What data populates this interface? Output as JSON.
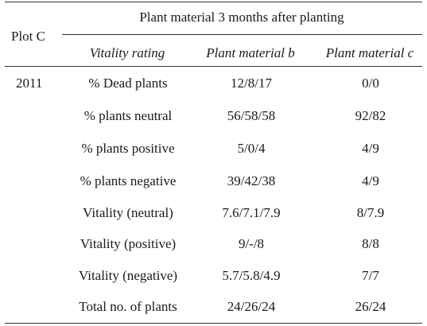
{
  "table": {
    "plot_label": "Plot C",
    "group_header": "Plant material 3 months after planting",
    "columns": {
      "vitality": "Vitality rating",
      "b": "Plant material b",
      "c": "Plant material c"
    },
    "year": "2011",
    "rows": [
      {
        "label": "% Dead plants",
        "b": "12/8/17",
        "c": "0/0"
      },
      {
        "label": "% plants neutral",
        "b": "56/58/58",
        "c": "92/82"
      },
      {
        "label": "% plants positive",
        "b": "5/0/4",
        "c": "4/9"
      },
      {
        "label": "% plants negative",
        "b": "39/42/38",
        "c": "4/9"
      },
      {
        "label": "Vitality (neutral)",
        "b": "7.6/7.1/7.9",
        "c": "8/7.9"
      },
      {
        "label": "Vitality (positive)",
        "b": "9/-/8",
        "c": "8/8"
      },
      {
        "label": "Vitality (negative)",
        "b": "5.7/5.8/4.9",
        "c": "7/7"
      },
      {
        "label": "Total no. of plants",
        "b": "24/26/24",
        "c": "26/24"
      }
    ]
  }
}
